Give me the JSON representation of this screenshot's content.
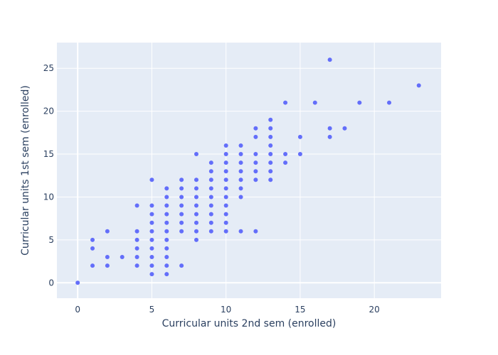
{
  "chart_data": {
    "type": "scatter",
    "title": "",
    "xlabel": "Curricular units 2nd sem (enrolled)",
    "ylabel": "Curricular units 1st sem (enrolled)",
    "xlim": [
      -1.4,
      24.5
    ],
    "ylim": [
      -1.8,
      28
    ],
    "xticks": [
      0,
      5,
      10,
      15,
      20
    ],
    "yticks": [
      0,
      5,
      10,
      15,
      20,
      25
    ],
    "grid": true,
    "colors": {
      "background": "#e5ecf6",
      "grid": "#ffffff",
      "marker": "#636efa",
      "text": "#2a3f5f"
    },
    "points": [
      [
        0,
        0
      ],
      [
        1,
        2
      ],
      [
        1,
        4
      ],
      [
        1,
        5
      ],
      [
        2,
        2
      ],
      [
        2,
        3
      ],
      [
        2,
        6
      ],
      [
        3,
        3
      ],
      [
        4,
        2
      ],
      [
        4,
        3
      ],
      [
        4,
        4
      ],
      [
        4,
        5
      ],
      [
        4,
        6
      ],
      [
        4,
        9
      ],
      [
        5,
        1
      ],
      [
        5,
        2
      ],
      [
        5,
        3
      ],
      [
        5,
        4
      ],
      [
        5,
        5
      ],
      [
        5,
        6
      ],
      [
        5,
        7
      ],
      [
        5,
        8
      ],
      [
        5,
        9
      ],
      [
        5,
        12
      ],
      [
        6,
        1
      ],
      [
        6,
        2
      ],
      [
        6,
        3
      ],
      [
        6,
        4
      ],
      [
        6,
        5
      ],
      [
        6,
        6
      ],
      [
        6,
        7
      ],
      [
        6,
        8
      ],
      [
        6,
        9
      ],
      [
        6,
        10
      ],
      [
        6,
        11
      ],
      [
        7,
        2
      ],
      [
        7,
        6
      ],
      [
        7,
        7
      ],
      [
        7,
        8
      ],
      [
        7,
        9
      ],
      [
        7,
        10
      ],
      [
        7,
        11
      ],
      [
        7,
        12
      ],
      [
        8,
        5
      ],
      [
        8,
        6
      ],
      [
        8,
        7
      ],
      [
        8,
        8
      ],
      [
        8,
        9
      ],
      [
        8,
        10
      ],
      [
        8,
        11
      ],
      [
        8,
        12
      ],
      [
        8,
        15
      ],
      [
        9,
        6
      ],
      [
        9,
        7
      ],
      [
        9,
        8
      ],
      [
        9,
        9
      ],
      [
        9,
        10
      ],
      [
        9,
        11
      ],
      [
        9,
        12
      ],
      [
        9,
        13
      ],
      [
        9,
        14
      ],
      [
        10,
        6
      ],
      [
        10,
        7
      ],
      [
        10,
        8
      ],
      [
        10,
        9
      ],
      [
        10,
        10
      ],
      [
        10,
        11
      ],
      [
        10,
        12
      ],
      [
        10,
        13
      ],
      [
        10,
        14
      ],
      [
        10,
        15
      ],
      [
        10,
        16
      ],
      [
        11,
        6
      ],
      [
        11,
        10
      ],
      [
        11,
        11
      ],
      [
        11,
        12
      ],
      [
        11,
        13
      ],
      [
        11,
        14
      ],
      [
        11,
        15
      ],
      [
        11,
        16
      ],
      [
        12,
        6
      ],
      [
        12,
        12
      ],
      [
        12,
        13
      ],
      [
        12,
        14
      ],
      [
        12,
        15
      ],
      [
        12,
        17
      ],
      [
        12,
        18
      ],
      [
        13,
        12
      ],
      [
        13,
        13
      ],
      [
        13,
        14
      ],
      [
        13,
        15
      ],
      [
        13,
        16
      ],
      [
        13,
        17
      ],
      [
        13,
        18
      ],
      [
        13,
        19
      ],
      [
        14,
        14
      ],
      [
        14,
        15
      ],
      [
        14,
        21
      ],
      [
        15,
        15
      ],
      [
        15,
        17
      ],
      [
        16,
        21
      ],
      [
        17,
        17
      ],
      [
        17,
        18
      ],
      [
        17,
        26
      ],
      [
        18,
        18
      ],
      [
        19,
        21
      ],
      [
        21,
        21
      ],
      [
        23,
        23
      ]
    ]
  }
}
